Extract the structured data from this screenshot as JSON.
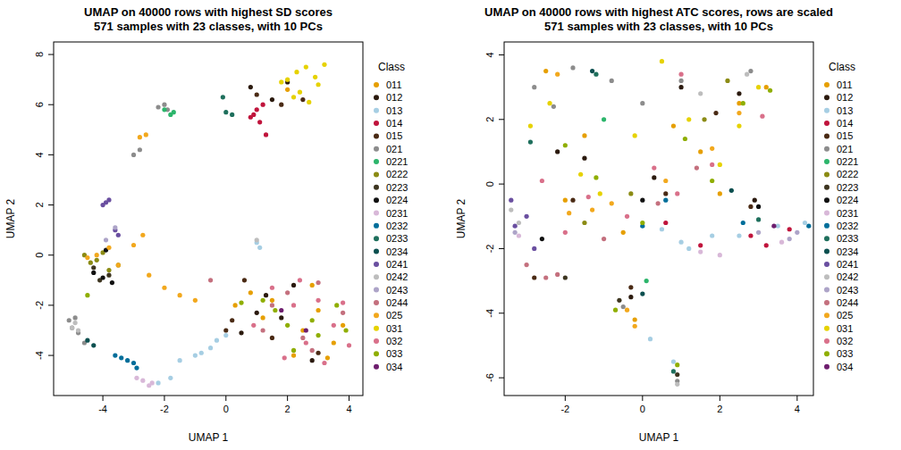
{
  "chart_data": [
    {
      "type": "scatter",
      "title": "UMAP on 40000 rows with highest SD scores",
      "subtitle": "571 samples with 23 classes, with 10 PCs",
      "x_label": "UMAP 1",
      "y_label": "UMAP 2",
      "legend_title": "Class",
      "legend": "right",
      "xlim": [
        -5.6,
        4.45
      ],
      "ylim": [
        -5.6,
        8.5
      ],
      "xticks": [
        -4,
        -2,
        0,
        2,
        4
      ],
      "yticks": [
        -4,
        -2,
        0,
        2,
        4,
        6,
        8
      ],
      "series": [
        {
          "name": "011",
          "color": "#E69F00",
          "x": [
            2.0,
            2.5,
            3.0,
            3.5,
            1.5,
            2.2,
            3.8,
            0.8,
            1.2,
            2.8,
            3.3,
            0.3
          ],
          "values": [
            6.6,
            -3.0,
            -2.2,
            -3.5,
            -1.8,
            -4.0,
            -2.8,
            -1.5,
            -2.5,
            -1.2,
            -4.1,
            -2.0
          ]
        },
        {
          "name": "012",
          "color": "#2B1A0E",
          "x": [
            1.5,
            2.0,
            0.8,
            1.3,
            2.2,
            0.5,
            1.0,
            2.8,
            1.8
          ],
          "values": [
            6.2,
            6.9,
            6.7,
            -1.6,
            -1.2,
            -3.1,
            -2.3,
            -4.2,
            -2.5
          ]
        },
        {
          "name": "013",
          "color": "#A6CEE3",
          "x": [
            -2.2,
            -1.8,
            -1.5,
            -1.0,
            -0.5,
            -0.3,
            0.0,
            1.0,
            1.1,
            -0.8
          ],
          "values": [
            -5.1,
            -4.9,
            -4.2,
            -4.0,
            -3.7,
            -3.4,
            -3.2,
            0.5,
            0.3,
            -3.9
          ]
        },
        {
          "name": "014",
          "color": "#C0143C",
          "x": [
            0.9,
            1.1,
            1.3,
            1.0,
            1.2,
            0.8
          ],
          "values": [
            5.6,
            5.3,
            4.8,
            5.8,
            6.0,
            5.5
          ]
        },
        {
          "name": "015",
          "color": "#4A2A14",
          "x": [
            1.0,
            1.8,
            2.5,
            0.6,
            0.2,
            1.5,
            3.0,
            0.0
          ],
          "values": [
            6.4,
            6.0,
            6.2,
            -1.0,
            -2.6,
            -3.3,
            -3.9,
            -3.0
          ]
        },
        {
          "name": "021",
          "color": "#8C8C8C",
          "x": [
            -2.2,
            -2.0,
            -3.0,
            -2.8,
            -5.1,
            -5.0,
            -4.8,
            -4.6,
            -4.9,
            -1.9
          ],
          "values": [
            5.9,
            6.0,
            4.0,
            4.2,
            -2.6,
            -2.9,
            -3.1,
            -3.5,
            -2.5,
            5.8
          ]
        },
        {
          "name": "0221",
          "color": "#2CB56B",
          "x": [
            -1.8,
            -2.0,
            -1.7
          ],
          "values": [
            5.6,
            5.8,
            5.7
          ]
        },
        {
          "name": "0222",
          "color": "#8B8B14",
          "x": [
            -4.4,
            -4.0,
            -3.8,
            -4.6,
            -4.2,
            -3.5
          ],
          "values": [
            -0.3,
            0.1,
            -0.6,
            0.0,
            -0.2,
            -0.4
          ]
        },
        {
          "name": "0223",
          "color": "#3D3520",
          "x": [
            -4.1,
            -3.8,
            -4.3
          ],
          "values": [
            -1.0,
            -0.8,
            -0.5
          ]
        },
        {
          "name": "0224",
          "color": "#111111",
          "x": [
            -4.0,
            -3.7,
            -4.3,
            -3.9
          ],
          "values": [
            -0.9,
            -1.1,
            -0.7,
            0.2
          ]
        },
        {
          "name": "0231",
          "color": "#D8B8D8",
          "x": [
            -2.7,
            -2.4,
            -2.9,
            -2.5
          ],
          "values": [
            -5.0,
            -5.1,
            -4.9,
            -5.2
          ]
        },
        {
          "name": "0232",
          "color": "#006E9A",
          "x": [
            -3.6,
            -3.4,
            -3.2,
            -3.0,
            -2.9
          ],
          "values": [
            -4.0,
            -4.1,
            -4.2,
            -4.3,
            -4.5
          ]
        },
        {
          "name": "0233",
          "color": "#1E6F5C",
          "x": [
            0.0,
            0.2,
            -0.1
          ],
          "values": [
            5.7,
            5.6,
            6.3
          ]
        },
        {
          "name": "0234",
          "color": "#0B4F4F",
          "x": [
            -4.5,
            -4.3
          ],
          "values": [
            -3.4,
            -3.6
          ]
        },
        {
          "name": "0241",
          "color": "#6A4FA0",
          "x": [
            -3.9,
            -3.8,
            -3.6,
            -3.5,
            -4.0
          ],
          "values": [
            2.1,
            2.2,
            1.0,
            0.8,
            2.0
          ]
        },
        {
          "name": "0242",
          "color": "#BDBDBD",
          "x": [
            -5.0,
            -4.8,
            1.0,
            -4.9
          ],
          "values": [
            -2.9,
            -3.0,
            0.6,
            -2.7
          ]
        },
        {
          "name": "0243",
          "color": "#ADA4C8",
          "x": [
            -3.9,
            -3.6
          ],
          "values": [
            0.6,
            1.1
          ]
        },
        {
          "name": "0244",
          "color": "#C4707E",
          "x": [
            -0.5,
            1.5,
            2.0,
            2.5,
            3.0,
            3.8,
            1.2,
            2.8
          ],
          "values": [
            -1.0,
            -2.0,
            -1.5,
            -3.3,
            -1.1,
            -2.3,
            -3.0,
            -3.8
          ]
        },
        {
          "name": "025",
          "color": "#F2A81D",
          "x": [
            -2.8,
            -2.6,
            -4.2,
            -3.8,
            -3.5,
            -3.0,
            -2.5,
            -2.0,
            -1.5,
            -1.0,
            -4.5,
            -2.7
          ],
          "values": [
            4.7,
            4.8,
            0.0,
            0.3,
            -0.4,
            0.4,
            -0.8,
            -1.3,
            -1.6,
            -1.8,
            -0.1,
            0.8
          ]
        },
        {
          "name": "031",
          "color": "#E6D200",
          "x": [
            2.0,
            2.3,
            2.6,
            2.9,
            3.0,
            2.4,
            1.8,
            2.7,
            2.2,
            3.2
          ],
          "values": [
            7.0,
            7.3,
            7.5,
            7.1,
            6.8,
            6.5,
            6.9,
            6.1,
            6.3,
            7.6
          ]
        },
        {
          "name": "032",
          "color": "#D9708A",
          "x": [
            1.5,
            2.2,
            3.0,
            3.5,
            4.0,
            2.6,
            1.9,
            0.9,
            3.2,
            3.8,
            2.4
          ],
          "values": [
            -1.3,
            -2.0,
            -1.8,
            -2.8,
            -3.6,
            -3.5,
            -4.1,
            -2.8,
            -4.3,
            -1.9,
            -1.0
          ]
        },
        {
          "name": "033",
          "color": "#8FAE00",
          "x": [
            1.2,
            2.0,
            2.8,
            3.6,
            3.9,
            2.2,
            1.6,
            3.0,
            -4.5,
            0.5
          ],
          "values": [
            -1.8,
            -2.8,
            -2.6,
            -2.0,
            -3.0,
            -3.8,
            -2.2,
            -3.2,
            -1.6,
            -1.9
          ]
        },
        {
          "name": "034",
          "color": "#6E1E6E",
          "x": [
            1.8,
            2.6
          ],
          "values": [
            -2.2,
            -3.0
          ]
        }
      ]
    },
    {
      "type": "scatter",
      "title": "UMAP on 40000 rows with highest ATC scores, rows are scaled",
      "subtitle": "571 samples with 23 classes, with 10 PCs",
      "x_label": "UMAP 1",
      "y_label": "UMAP 2",
      "legend_title": "Class",
      "legend": "right",
      "xlim": [
        -3.58,
        4.42
      ],
      "ylim": [
        -6.55,
        4.4
      ],
      "xticks": [
        -2,
        0,
        2,
        4
      ],
      "yticks": [
        -6,
        -4,
        -2,
        0,
        2,
        4
      ],
      "series": [
        {
          "name": "011",
          "color": "#E69F00",
          "x": [
            -2.5,
            -1.5,
            -0.2,
            1.5,
            2.5,
            3.2,
            -0.5,
            0.8,
            -2.0,
            2.0
          ],
          "values": [
            3.5,
            1.5,
            -4.2,
            1.0,
            2.5,
            3.0,
            -1.5,
            1.8,
            -0.5,
            -0.3
          ]
        },
        {
          "name": "012",
          "color": "#2B1A0E",
          "x": [
            -1.5,
            0.3,
            -0.3,
            1.0,
            2.5,
            2.9,
            -2.2
          ],
          "values": [
            0.8,
            0.2,
            -3.5,
            3.0,
            2.8,
            -0.5,
            1.0
          ]
        },
        {
          "name": "013",
          "color": "#A6CEE3",
          "x": [
            0.5,
            1.0,
            1.2,
            0.2,
            2.5,
            3.5,
            4.2,
            1.8,
            0.8
          ],
          "values": [
            -1.4,
            -1.8,
            -2.0,
            -4.8,
            -1.6,
            -1.3,
            -1.2,
            -1.6,
            -5.5
          ]
        },
        {
          "name": "014",
          "color": "#C0143C",
          "x": [
            2.8,
            3.2,
            0.6,
            1.5,
            3.8
          ],
          "values": [
            -1.6,
            -1.9,
            -1.2,
            -1.9,
            -1.4
          ]
        },
        {
          "name": "015",
          "color": "#4A2A14",
          "x": [
            -1.8,
            -0.3,
            0.6,
            1.9,
            2.8,
            -2.8
          ],
          "values": [
            -0.5,
            -3.2,
            -0.3,
            2.2,
            -0.7,
            -2.9
          ]
        },
        {
          "name": "021",
          "color": "#8C8C8C",
          "x": [
            -2.8,
            -2.3,
            -1.8,
            -0.8,
            0.0,
            1.0,
            2.8,
            -0.5,
            0.9
          ],
          "values": [
            3.0,
            2.4,
            3.6,
            3.2,
            2.5,
            3.2,
            3.5,
            -3.8,
            -6.1
          ]
        },
        {
          "name": "0221",
          "color": "#2CB56B",
          "x": [
            -1.0,
            0.1
          ],
          "values": [
            2.0,
            -3.0
          ]
        },
        {
          "name": "0222",
          "color": "#8B8B14",
          "x": [
            -0.3,
            2.2,
            -1.5,
            1.6
          ],
          "values": [
            -0.3,
            3.2,
            -1.2,
            2.0
          ]
        },
        {
          "name": "0223",
          "color": "#3D3520",
          "x": [
            -0.6,
            0.9,
            -2.0
          ],
          "values": [
            -3.6,
            -5.9,
            -2.9
          ]
        },
        {
          "name": "0224",
          "color": "#111111",
          "x": [
            -2.6,
            0.0,
            3.0
          ],
          "values": [
            -1.7,
            -0.5,
            -0.7
          ]
        },
        {
          "name": "0231",
          "color": "#D8B8D8",
          "x": [
            1.5,
            2.0,
            3.6,
            -3.2
          ],
          "values": [
            -2.1,
            -2.2,
            -1.8,
            -1.6
          ]
        },
        {
          "name": "0232",
          "color": "#006E9A",
          "x": [
            0.0,
            0.6,
            2.6,
            4.3
          ],
          "values": [
            -1.3,
            -0.5,
            -1.2,
            -1.3
          ]
        },
        {
          "name": "0233",
          "color": "#1E6F5C",
          "x": [
            -1.2,
            0.8,
            3.0,
            -2.9
          ],
          "values": [
            3.4,
            -5.8,
            -1.1,
            1.3
          ]
        },
        {
          "name": "0234",
          "color": "#0B4F4F",
          "x": [
            -1.3,
            0.0,
            2.3
          ],
          "values": [
            3.5,
            -3.4,
            -0.2
          ]
        },
        {
          "name": "0241",
          "color": "#6A4FA0",
          "x": [
            -3.3,
            -3.0,
            -3.4,
            -2.8
          ],
          "values": [
            -1.3,
            -1.0,
            -0.5,
            -2.0
          ]
        },
        {
          "name": "0242",
          "color": "#BDBDBD",
          "x": [
            -3.2,
            -3.4,
            0.9,
            2.7,
            1.5
          ],
          "values": [
            -1.2,
            -0.8,
            -6.2,
            3.4,
            2.8
          ]
        },
        {
          "name": "0243",
          "color": "#ADA4C8",
          "x": [
            -3.3,
            3.0,
            3.8,
            4.0
          ],
          "values": [
            -1.5,
            -1.5,
            -1.7,
            -1.5
          ]
        },
        {
          "name": "0244",
          "color": "#C4707E",
          "x": [
            -3.0,
            -2.5,
            -1.0,
            0.4,
            1.4,
            -2.2
          ],
          "values": [
            -2.5,
            -2.9,
            -1.7,
            -0.6,
            0.5,
            -2.8
          ]
        },
        {
          "name": "025",
          "color": "#F2A81D",
          "x": [
            -2.2,
            -1.9,
            -0.8,
            -0.2,
            0.6,
            1.8,
            2.5,
            -1.3,
            -0.4
          ],
          "values": [
            3.4,
            -0.9,
            -0.6,
            -4.4,
            0.1,
            1.1,
            2.2,
            -0.8,
            -3.9
          ]
        },
        {
          "name": "031",
          "color": "#E6D200",
          "x": [
            -2.9,
            -2.4,
            -1.1,
            -0.2,
            1.2,
            2.0,
            3.0,
            2.5,
            -1.6,
            0.5
          ],
          "values": [
            1.8,
            2.5,
            -0.3,
            1.5,
            2.0,
            0.6,
            3.0,
            1.8,
            0.3,
            3.8
          ]
        },
        {
          "name": "032",
          "color": "#D9708A",
          "x": [
            -2.6,
            -2.0,
            -1.4,
            0.3,
            1.0,
            1.8,
            3.1,
            -0.4,
            0.9
          ],
          "values": [
            0.1,
            -1.5,
            -0.4,
            0.5,
            3.4,
            0.6,
            2.1,
            -1.0,
            -0.3
          ]
        },
        {
          "name": "033",
          "color": "#8FAE00",
          "x": [
            -2.0,
            -1.2,
            0.0,
            1.1,
            1.8,
            2.6,
            3.3,
            0.9,
            -0.7
          ],
          "values": [
            1.2,
            0.2,
            -1.2,
            1.4,
            0.1,
            2.5,
            2.9,
            -5.6,
            -3.9
          ]
        },
        {
          "name": "034",
          "color": "#6E1E6E",
          "x": [
            3.4
          ],
          "values": [
            -1.3
          ]
        }
      ]
    }
  ]
}
